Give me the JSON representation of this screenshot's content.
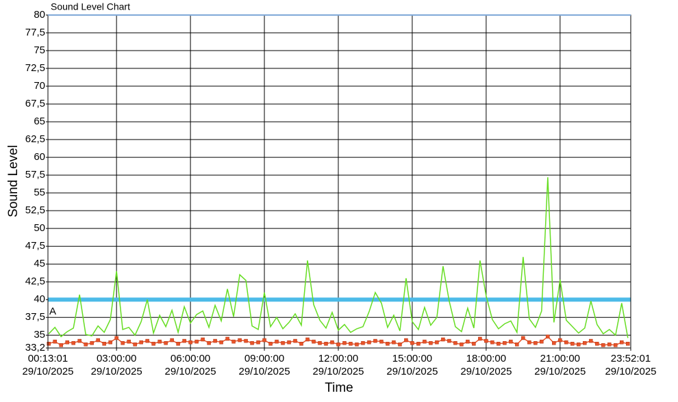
{
  "chart_data": {
    "type": "line",
    "title": "Sound Level Chart",
    "x_label": "Time",
    "y_label": "Sound Level",
    "x_date_label": "29/10/2025",
    "x": [
      "00:15:00",
      "00:30:00",
      "00:45:00",
      "01:00:00",
      "01:15:00",
      "01:30:00",
      "01:45:00",
      "02:00:00",
      "02:15:00",
      "02:30:00",
      "02:45:00",
      "03:00:00",
      "03:15:00",
      "03:30:00",
      "03:45:00",
      "04:00:00",
      "04:15:00",
      "04:30:00",
      "04:45:00",
      "05:00:00",
      "05:15:00",
      "05:30:00",
      "05:45:00",
      "06:00:00",
      "06:15:00",
      "06:30:00",
      "06:45:00",
      "07:00:00",
      "07:15:00",
      "07:30:00",
      "07:45:00",
      "08:00:00",
      "08:15:00",
      "08:30:00",
      "08:45:00",
      "09:00:00",
      "09:15:00",
      "09:30:00",
      "09:45:00",
      "10:00:00",
      "10:15:00",
      "10:30:00",
      "10:45:00",
      "11:00:00",
      "11:15:00",
      "11:30:00",
      "11:45:00",
      "12:00:00",
      "12:15:00",
      "12:30:00",
      "12:45:00",
      "13:00:00",
      "13:15:00",
      "13:30:00",
      "13:45:00",
      "14:00:00",
      "14:15:00",
      "14:30:00",
      "14:45:00",
      "15:00:00",
      "15:15:00",
      "15:30:00",
      "15:45:00",
      "16:00:00",
      "16:15:00",
      "16:30:00",
      "16:45:00",
      "17:00:00",
      "17:15:00",
      "17:30:00",
      "17:45:00",
      "18:00:00",
      "18:15:00",
      "18:30:00",
      "18:45:00",
      "19:00:00",
      "19:15:00",
      "19:30:00",
      "19:45:00",
      "20:00:00",
      "20:15:00",
      "20:30:00",
      "20:45:00",
      "21:00:00",
      "21:15:00",
      "21:30:00",
      "21:45:00",
      "22:00:00",
      "22:15:00",
      "22:30:00",
      "22:45:00",
      "23:00:00",
      "23:15:00",
      "23:30:00",
      "23:45:00"
    ],
    "series": [
      {
        "color": "#66dd22",
        "marker": "none",
        "values": [
          35.2,
          36.1,
          34.8,
          35.5,
          36.0,
          40.7,
          35.1,
          34.9,
          36.3,
          35.4,
          37.2,
          44.0,
          35.8,
          36.1,
          35.0,
          36.9,
          40.0,
          35.3,
          37.8,
          36.2,
          38.5,
          35.4,
          39.0,
          36.7,
          37.9,
          38.4,
          36.1,
          39.2,
          37.0,
          41.5,
          37.6,
          43.5,
          42.7,
          36.3,
          35.8,
          41.0,
          36.2,
          37.5,
          35.9,
          36.8,
          38.0,
          36.4,
          45.5,
          39.3,
          37.1,
          36.0,
          38.2,
          35.7,
          36.5,
          35.4,
          35.9,
          36.2,
          38.3,
          41.0,
          39.5,
          36.1,
          37.8,
          35.6,
          43.0,
          36.9,
          35.8,
          38.9,
          36.4,
          37.5,
          44.7,
          39.8,
          36.2,
          35.5,
          38.8,
          36.0,
          45.5,
          40.5,
          37.2,
          35.9,
          36.6,
          37.0,
          35.4,
          46.0,
          37.3,
          36.1,
          38.4,
          57.2,
          36.8,
          42.8,
          37.1,
          36.2,
          35.3,
          36.0,
          39.8,
          36.5,
          35.2,
          35.8,
          35.0,
          39.5,
          34.6
        ]
      },
      {
        "color": "#e8542a",
        "marker": "square",
        "values": [
          33.8,
          34.1,
          33.6,
          34.0,
          33.9,
          34.2,
          33.7,
          33.9,
          34.3,
          33.8,
          34.0,
          34.6,
          33.9,
          34.1,
          33.7,
          34.0,
          34.2,
          33.8,
          34.1,
          33.9,
          34.3,
          33.8,
          34.2,
          34.0,
          34.1,
          34.4,
          33.9,
          34.2,
          34.0,
          34.5,
          34.1,
          34.3,
          34.2,
          33.9,
          34.0,
          34.3,
          33.8,
          34.1,
          33.9,
          34.0,
          34.2,
          33.8,
          34.4,
          34.1,
          33.9,
          33.8,
          34.0,
          33.7,
          33.9,
          33.8,
          33.7,
          33.9,
          34.0,
          34.2,
          34.1,
          33.8,
          34.0,
          33.7,
          34.3,
          33.9,
          33.8,
          34.1,
          33.9,
          34.0,
          34.4,
          34.2,
          33.9,
          33.7,
          34.1,
          33.8,
          34.5,
          34.2,
          34.0,
          33.8,
          33.9,
          34.1,
          33.7,
          34.6,
          34.0,
          33.9,
          34.1,
          34.8,
          33.9,
          34.3,
          34.0,
          33.8,
          33.7,
          33.9,
          34.2,
          33.8,
          33.6,
          33.7,
          33.6,
          34.0,
          33.8
        ]
      }
    ],
    "threshold": {
      "value": 40,
      "label": "A",
      "color": "#4dbbe8"
    },
    "xlim": [
      "00:13:01",
      "23:52:01"
    ],
    "xticks": [
      "00:13:01",
      "03:00:00",
      "06:00:00",
      "09:00:00",
      "12:00:00",
      "15:00:00",
      "18:00:00",
      "21:00:00",
      "23:52:01"
    ],
    "ylim": [
      33.2,
      80
    ],
    "yticks": [
      {
        "value": 33.2,
        "label": "33,2"
      },
      35,
      {
        "value": 37.5,
        "label": "37,5"
      },
      40,
      {
        "value": 42.5,
        "label": "42,5"
      },
      45,
      {
        "value": 47.5,
        "label": "47,5"
      },
      50,
      {
        "value": 52.5,
        "label": "52,5"
      },
      55,
      {
        "value": 57.5,
        "label": "57,5"
      },
      60,
      {
        "value": 62.5,
        "label": "62,5"
      },
      65,
      {
        "value": 67.5,
        "label": "67,5"
      },
      70,
      {
        "value": 72.5,
        "label": "72,5"
      },
      75,
      {
        "value": 77.5,
        "label": "77,5"
      },
      80
    ],
    "grid": true
  }
}
